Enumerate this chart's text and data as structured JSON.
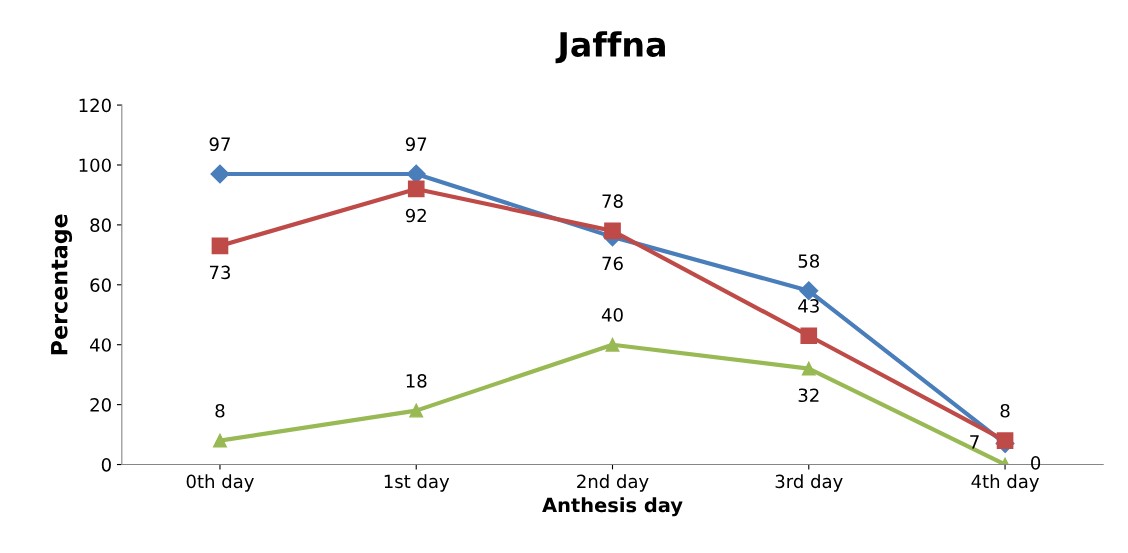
{
  "chart_data": {
    "type": "line",
    "title": "Jaffna",
    "xlabel": "Anthesis day",
    "ylabel": "Percentage",
    "categories": [
      "0th day",
      "1st day",
      "2nd day",
      "3rd day",
      "4th day"
    ],
    "series": [
      {
        "color": "#4a7ebb",
        "marker": "diamond",
        "values": [
          97,
          97,
          76,
          58,
          7
        ]
      },
      {
        "color": "#be4b48",
        "marker": "square",
        "values": [
          73,
          92,
          78,
          43,
          8
        ]
      },
      {
        "color": "#98b954",
        "marker": "triangle",
        "values": [
          8,
          18,
          40,
          32,
          0
        ]
      }
    ],
    "ylim": [
      0,
      120
    ],
    "yticks": [
      0,
      20,
      40,
      60,
      80,
      100,
      120
    ],
    "grid": false,
    "legend": false,
    "data_labels": true,
    "line_style": "solid"
  }
}
